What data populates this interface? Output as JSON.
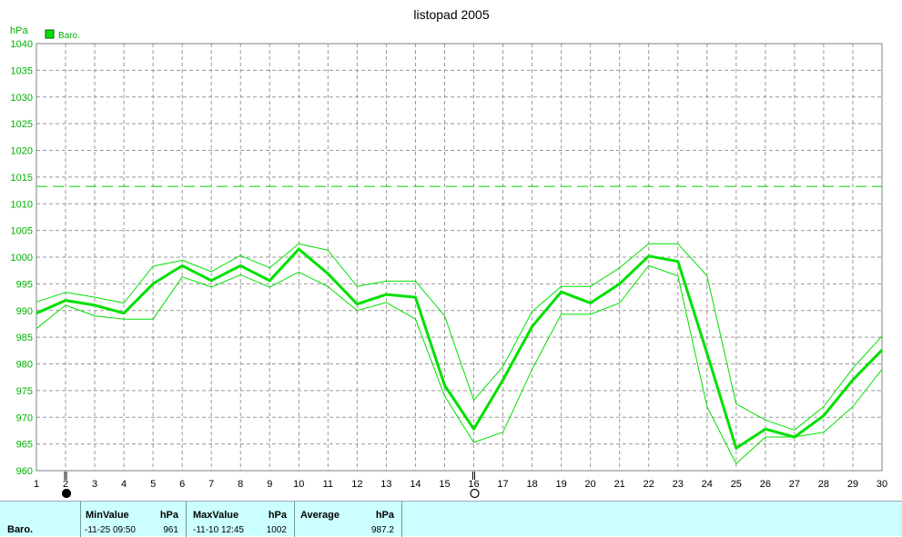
{
  "chart_data": {
    "type": "line",
    "title": "listopad 2005",
    "ylabel": "hPa",
    "xlabel": "",
    "x": [
      1,
      2,
      3,
      4,
      5,
      6,
      7,
      8,
      9,
      10,
      11,
      12,
      13,
      14,
      15,
      16,
      17,
      18,
      19,
      20,
      21,
      22,
      23,
      24,
      25,
      26,
      27,
      28,
      29,
      30
    ],
    "xlim": [
      1,
      30
    ],
    "ylim": [
      960,
      1040
    ],
    "yticks": [
      960,
      965,
      970,
      975,
      980,
      985,
      990,
      995,
      1000,
      1005,
      1010,
      1015,
      1020,
      1025,
      1030,
      1035,
      1040
    ],
    "grid": true,
    "legend": "top-left",
    "series": [
      {
        "name": "Baro.",
        "role": "average",
        "color": "#00e000",
        "values": [
          989.5,
          991.9,
          991.0,
          989.5,
          995.0,
          998.4,
          995.6,
          998.4,
          995.6,
          1001.5,
          996.9,
          991.2,
          993.0,
          992.5,
          976.0,
          967.8,
          977.0,
          987.0,
          993.5,
          991.4,
          995.0,
          1000.2,
          999.2,
          982.0,
          964.2,
          967.8,
          966.3,
          970.3,
          977.0,
          982.6
        ]
      },
      {
        "name": "",
        "role": "max",
        "color": "#00e000",
        "values": [
          991.6,
          993.4,
          992.5,
          991.4,
          998.3,
          999.4,
          997.3,
          1000.3,
          998.0,
          1002.5,
          1001.3,
          994.5,
          995.5,
          995.5,
          989.0,
          973.2,
          979.5,
          989.8,
          994.5,
          994.5,
          998.0,
          1002.5,
          1002.5,
          996.5,
          972.5,
          969.5,
          967.6,
          972.0,
          979.2,
          985.2
        ]
      },
      {
        "name": "",
        "role": "min",
        "color": "#00e000",
        "values": [
          986.6,
          991.0,
          989.0,
          988.4,
          988.4,
          996.3,
          994.4,
          996.7,
          994.4,
          997.2,
          994.5,
          990.0,
          991.5,
          988.4,
          974.0,
          965.3,
          967.2,
          979.0,
          989.3,
          989.3,
          991.4,
          998.4,
          996.5,
          972.0,
          961.3,
          966.3,
          966.3,
          967.2,
          972.0,
          979.0
        ]
      }
    ],
    "reference_line": {
      "value": 1013.25,
      "style": "dashed",
      "color": "#00d000"
    },
    "markers": [
      {
        "x": 2,
        "symbol": "new-moon-icon"
      },
      {
        "x": 16,
        "symbol": "full-moon-icon"
      }
    ]
  },
  "legend": {
    "label": "Baro.",
    "color": "#00e000"
  },
  "stats": {
    "series": "Baro.",
    "min_header": "MinValue",
    "min_unit": "hPa",
    "min_time": "-11-25  09:50",
    "min_value": "961",
    "max_header": "MaxValue",
    "max_unit": "hPa",
    "max_time": "-11-10  12:45",
    "max_value": "1002",
    "avg_header": "Average",
    "avg_unit": "hPa",
    "avg_value": "987.2"
  },
  "colors": {
    "series": "#00e000",
    "axis_label": "#00b000",
    "panel_bg": "#ccffff",
    "grid": "#999999"
  }
}
